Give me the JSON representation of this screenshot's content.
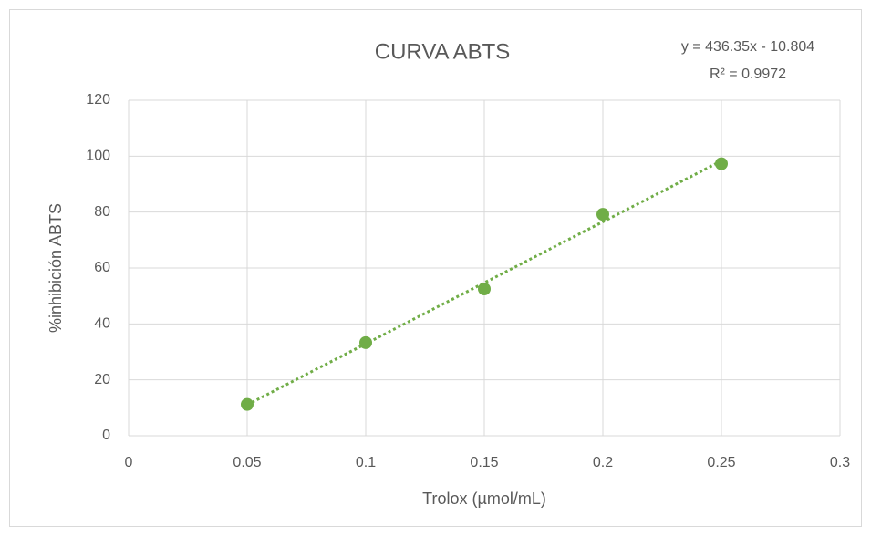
{
  "chart_data": {
    "type": "scatter",
    "title": "CURVA ABTS",
    "annotations": [
      "y = 436.35x - 10.804",
      "R² = 0.9972"
    ],
    "x_label": "Trolox (µmol/mL)",
    "y_label": "%inhibición  ABTS",
    "x": [
      0.05,
      0.1,
      0.15,
      0.2,
      0.25
    ],
    "values": [
      11.2,
      33.3,
      52.5,
      79.2,
      97.3
    ],
    "color": "#70ad47",
    "trendline": true,
    "xlim": [
      0,
      0.3
    ],
    "xticks": [
      0,
      0.05,
      0.1,
      0.15,
      0.2,
      0.25,
      0.3
    ],
    "ylim": [
      0,
      120
    ],
    "yticks": [
      0,
      20,
      40,
      60,
      80,
      100,
      120
    ],
    "grid": true
  }
}
